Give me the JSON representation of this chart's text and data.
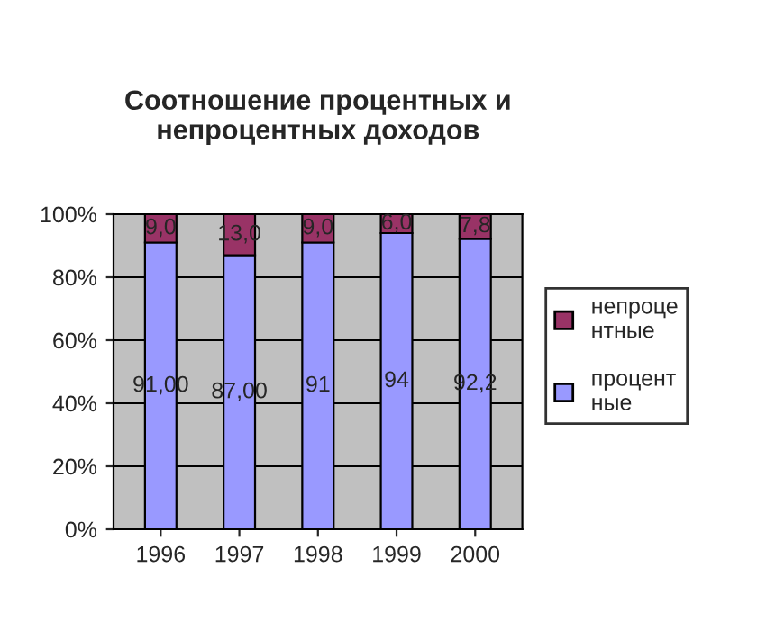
{
  "chart_data": {
    "type": "bar",
    "title": "Соотношение процентных и\nнепроцентных доходов",
    "categories": [
      "1996",
      "1997",
      "1998",
      "1999",
      "2000"
    ],
    "stacked": true,
    "series": [
      {
        "name": "процент\nные",
        "color": "#9999ff",
        "values": [
          91,
          87,
          91,
          94,
          92.2
        ],
        "value_labels": [
          "91,00",
          "87,00",
          "91",
          "94",
          "92,2"
        ]
      },
      {
        "name": "непроце\nнтные",
        "color": "#993366",
        "values": [
          9,
          13,
          9,
          6,
          7.8
        ],
        "value_labels": [
          "9,0",
          "13,0",
          "9,0",
          "6,0",
          "7,8"
        ]
      }
    ],
    "ylim": [
      0,
      100
    ],
    "yticks": [
      {
        "value": 0,
        "label": "0%"
      },
      {
        "value": 20,
        "label": "20%"
      },
      {
        "value": 40,
        "label": "40%"
      },
      {
        "value": 60,
        "label": "60%"
      },
      {
        "value": 80,
        "label": "80%"
      },
      {
        "value": 100,
        "label": "100%"
      }
    ],
    "grid": "y",
    "legend": "right"
  }
}
